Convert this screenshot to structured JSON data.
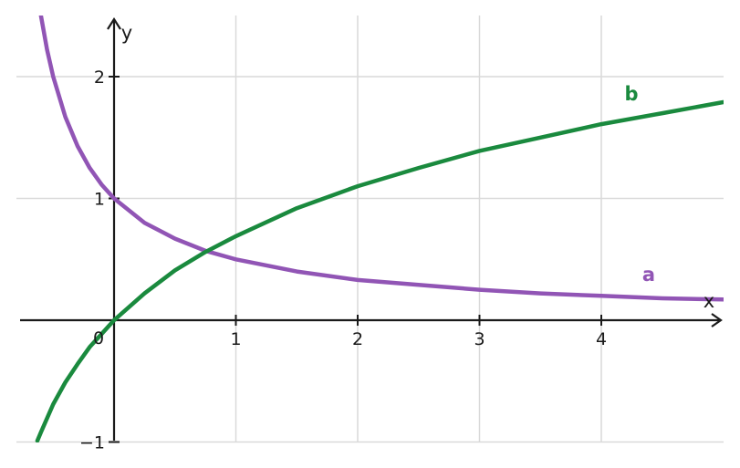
{
  "chart_data": {
    "type": "line",
    "title": "",
    "xlabel": "x",
    "ylabel": "y",
    "xlim": [
      -0.75,
      5.0
    ],
    "ylim": [
      -1.0,
      2.5
    ],
    "xticks": [
      {
        "value": 1,
        "label": "1"
      },
      {
        "value": 2,
        "label": "2"
      },
      {
        "value": 3,
        "label": "3"
      },
      {
        "value": 4,
        "label": "4"
      }
    ],
    "yticks": [
      {
        "value": -1,
        "label": "−1"
      },
      {
        "value": 1,
        "label": "1"
      },
      {
        "value": 2,
        "label": "2"
      }
    ],
    "origin_label": "0",
    "grid": true,
    "series": [
      {
        "name": "a",
        "color": "#9155b5",
        "x": [
          -0.6,
          -0.55,
          -0.5,
          -0.4,
          -0.3,
          -0.2,
          -0.1,
          0,
          0.25,
          0.5,
          0.75,
          1,
          1.5,
          2,
          2.5,
          3,
          3.5,
          4,
          4.5,
          5
        ],
        "y": [
          2.5,
          2.22,
          2.0,
          1.67,
          1.43,
          1.25,
          1.11,
          1.0,
          0.8,
          0.67,
          0.57,
          0.5,
          0.4,
          0.33,
          0.29,
          0.25,
          0.22,
          0.2,
          0.18,
          0.17
        ]
      },
      {
        "name": "b",
        "color": "#1a8a3e",
        "x": [
          -0.63,
          -0.6,
          -0.5,
          -0.4,
          -0.3,
          -0.2,
          -0.1,
          0,
          0.25,
          0.5,
          0.75,
          1,
          1.5,
          2,
          2.5,
          3,
          3.5,
          4,
          4.5,
          5
        ],
        "y": [
          -0.99,
          -0.92,
          -0.69,
          -0.51,
          -0.36,
          -0.22,
          -0.11,
          0.0,
          0.22,
          0.41,
          0.56,
          0.69,
          0.92,
          1.1,
          1.25,
          1.39,
          1.5,
          1.61,
          1.7,
          1.79
        ]
      }
    ]
  }
}
